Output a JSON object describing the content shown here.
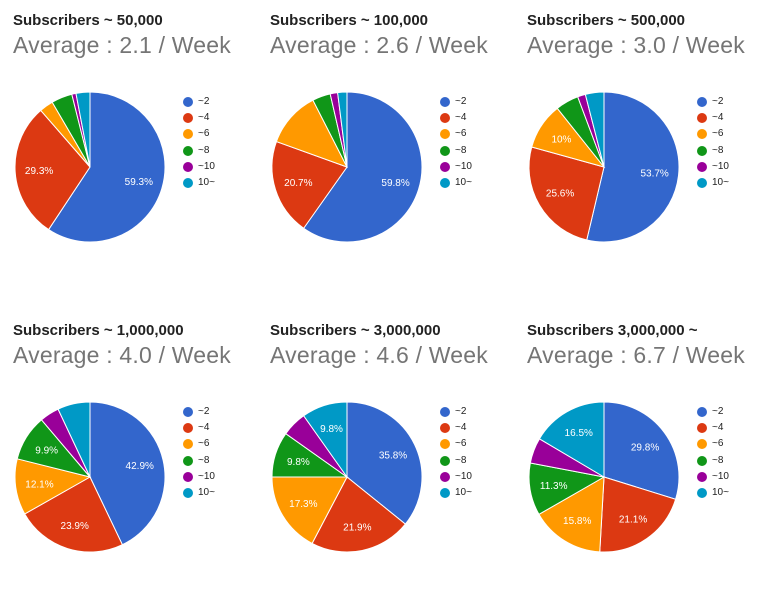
{
  "colors": [
    "#3366cc",
    "#dc3912",
    "#ff9900",
    "#109618",
    "#990099",
    "#0099c6"
  ],
  "legend_labels": [
    "~2",
    "~4",
    "~6",
    "~8",
    "~10",
    "10~"
  ],
  "chart_data": [
    {
      "type": "pie",
      "title": "Subscribers ~ 50,000",
      "subtitle": "Average : 2.1 / Week",
      "categories": [
        "~2",
        "~4",
        "~6",
        "~8",
        "~10",
        "10~"
      ],
      "values": [
        59.3,
        29.3,
        3.0,
        4.5,
        0.9,
        3.0
      ],
      "labels": [
        "59.3%",
        "29.3%",
        "",
        "",
        "",
        ""
      ],
      "legend": "right"
    },
    {
      "type": "pie",
      "title": "Subscribers ~ 100,000",
      "subtitle": "Average : 2.6 / Week",
      "categories": [
        "~2",
        "~4",
        "~6",
        "~8",
        "~10",
        "10~"
      ],
      "values": [
        59.8,
        20.7,
        12.0,
        3.9,
        1.6,
        2.0
      ],
      "labels": [
        "59.8%",
        "20.7%",
        "",
        "",
        "",
        ""
      ],
      "legend": "right"
    },
    {
      "type": "pie",
      "title": "Subscribers ~ 500,000",
      "subtitle": "Average : 3.0 / Week",
      "categories": [
        "~2",
        "~4",
        "~6",
        "~8",
        "~10",
        "10~"
      ],
      "values": [
        53.7,
        25.6,
        10.0,
        5.0,
        1.7,
        4.0
      ],
      "labels": [
        "53.7%",
        "25.6%",
        "10%",
        "",
        "",
        ""
      ],
      "legend": "right"
    },
    {
      "type": "pie",
      "title": "Subscribers ~ 1,000,000",
      "subtitle": "Average : 4.0 / Week",
      "categories": [
        "~2",
        "~4",
        "~6",
        "~8",
        "~10",
        "10~"
      ],
      "values": [
        42.9,
        23.9,
        12.1,
        9.9,
        4.2,
        7.0
      ],
      "labels": [
        "42.9%",
        "23.9%",
        "12.1%",
        "9.9%",
        "",
        ""
      ],
      "legend": "right"
    },
    {
      "type": "pie",
      "title": "Subscribers ~ 3,000,000",
      "subtitle": "Average : 4.6 / Week",
      "categories": [
        "~2",
        "~4",
        "~6",
        "~8",
        "~10",
        "10~"
      ],
      "values": [
        35.8,
        21.9,
        17.3,
        9.8,
        5.4,
        9.8
      ],
      "labels": [
        "35.8%",
        "21.9%",
        "17.3%",
        "9.8%",
        "",
        "9.8%"
      ],
      "legend": "right"
    },
    {
      "type": "pie",
      "title": "Subscribers 3,000,000 ~",
      "subtitle": "Average : 6.7 / Week",
      "categories": [
        "~2",
        "~4",
        "~6",
        "~8",
        "~10",
        "10~"
      ],
      "values": [
        29.8,
        21.1,
        15.8,
        11.3,
        5.5,
        16.5
      ],
      "labels": [
        "29.8%",
        "21.1%",
        "15.8%",
        "11.3%",
        "",
        "16.5%"
      ],
      "legend": "right"
    }
  ]
}
